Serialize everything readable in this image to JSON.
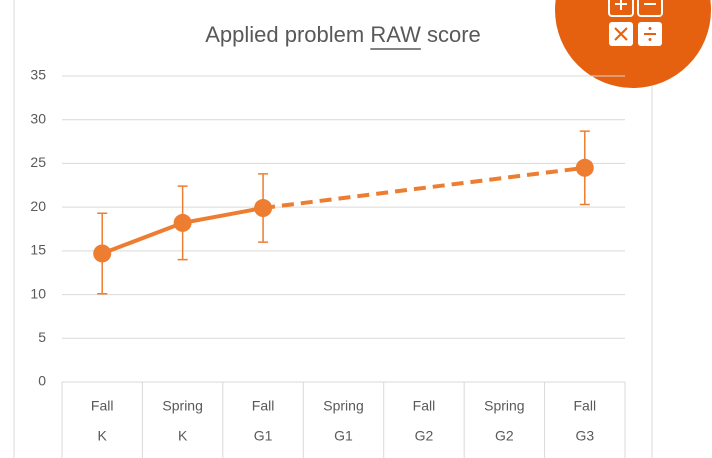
{
  "chart_data": {
    "type": "line",
    "title": "Applied problem RAW score",
    "categories": [
      [
        "Fall",
        "K"
      ],
      [
        "Spring",
        "K"
      ],
      [
        "Fall",
        "G1"
      ],
      [
        "Spring",
        "G1"
      ],
      [
        "Fall",
        "G2"
      ],
      [
        "Spring",
        "G2"
      ],
      [
        "Fall",
        "G3"
      ]
    ],
    "series": [
      {
        "color": "#ED7D31",
        "values": [
          14.7,
          18.2,
          19.9,
          null,
          null,
          null,
          24.5
        ],
        "errors": [
          4.6,
          4.2,
          3.9,
          null,
          null,
          null,
          4.2
        ]
      }
    ],
    "gap_line": "dashed",
    "ylim": [
      0,
      35
    ],
    "yticks": [
      0,
      5,
      10,
      15,
      20,
      25,
      30,
      35
    ],
    "grid": true
  }
}
